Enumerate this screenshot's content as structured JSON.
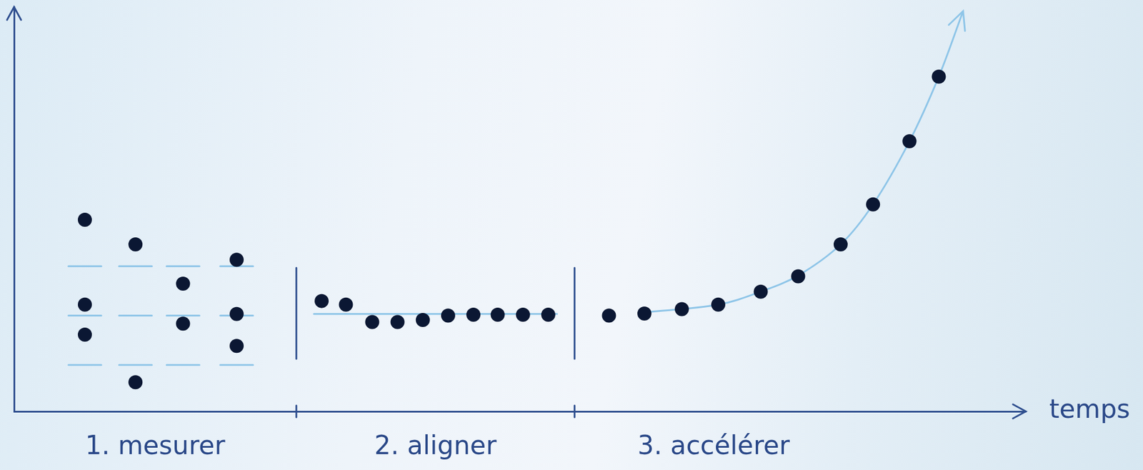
{
  "chart_data": {
    "type": "scatter",
    "x_label": "temps",
    "xlim": [
      0,
      100
    ],
    "ylim": [
      0,
      100
    ],
    "tick_labels": false,
    "grid": false,
    "phases": [
      {
        "label": "1. mesurer",
        "start": 0,
        "reference_levels": [
          35.9,
          23.7,
          11.5
        ]
      },
      {
        "label": "2. aligner",
        "start": 27.9,
        "reference_levels": [
          24.1
        ]
      },
      {
        "label": "3. accélérer",
        "start": 55.4
      }
    ],
    "series": [
      {
        "color": "#0b1733",
        "marker": "circle",
        "x": [
          7.0,
          7.0,
          7.0,
          12.0,
          12.0,
          16.7,
          16.7,
          22.0,
          22.0,
          22.0,
          30.4,
          32.8,
          35.4,
          37.9,
          40.4,
          42.9,
          45.4,
          47.8,
          50.3,
          52.8,
          58.8,
          62.3,
          66.0,
          69.6,
          73.8,
          77.5,
          81.7,
          84.9,
          88.5,
          91.4
        ],
        "values": [
          47.4,
          26.4,
          19.0,
          41.3,
          7.2,
          31.6,
          21.7,
          37.5,
          24.1,
          16.2,
          27.3,
          26.4,
          22.1,
          22.1,
          22.6,
          23.7,
          23.9,
          23.9,
          23.9,
          23.9,
          23.7,
          24.2,
          25.3,
          26.4,
          29.6,
          33.4,
          41.3,
          51.2,
          66.8,
          82.8
        ]
      },
      {
        "color": "#8ec5e8",
        "type": "line",
        "line_style": "solid",
        "x": [
          62.3,
          69.6,
          73.8,
          77.5,
          81.7,
          84.9,
          88.5,
          91.4,
          93.8
        ],
        "values": [
          24.5,
          26.4,
          29.6,
          33.6,
          41.3,
          51.2,
          66.8,
          82.8,
          99.0
        ]
      }
    ]
  }
}
